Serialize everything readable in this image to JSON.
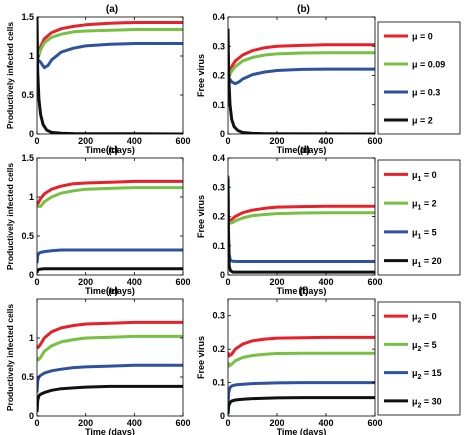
{
  "chart_data": [
    {
      "type": "line",
      "panel_label": "(a)",
      "xlabel": "Time (days)",
      "ylabel": "Productively infected cells",
      "xlim": [
        0,
        600
      ],
      "ylim": [
        0,
        1.5
      ],
      "xticks": [
        "0",
        "200",
        "400",
        "600"
      ],
      "yticks": [
        "0",
        "0.5",
        "1",
        "1.5"
      ],
      "series": [
        {
          "color": "#e8202a",
          "x": [
            0,
            5,
            15,
            30,
            60,
            100,
            150,
            200,
            300,
            400,
            500,
            600
          ],
          "y": [
            0.9,
            1.0,
            1.12,
            1.22,
            1.3,
            1.35,
            1.38,
            1.4,
            1.42,
            1.43,
            1.43,
            1.43
          ]
        },
        {
          "color": "#76c043",
          "x": [
            0,
            5,
            15,
            30,
            60,
            100,
            150,
            200,
            300,
            400,
            500,
            600
          ],
          "y": [
            0.9,
            0.98,
            1.08,
            1.17,
            1.24,
            1.28,
            1.31,
            1.32,
            1.33,
            1.34,
            1.34,
            1.34
          ]
        },
        {
          "color": "#2f52a0",
          "x": [
            0,
            5,
            15,
            30,
            45,
            60,
            100,
            150,
            200,
            300,
            400,
            500,
            600
          ],
          "y": [
            0.9,
            0.95,
            0.92,
            0.85,
            0.88,
            0.95,
            1.05,
            1.1,
            1.13,
            1.15,
            1.16,
            1.16,
            1.16
          ]
        },
        {
          "color": "#111111",
          "x": [
            0,
            3,
            8,
            15,
            25,
            40,
            60,
            100,
            150,
            600
          ],
          "y": [
            1.5,
            0.8,
            0.45,
            0.25,
            0.12,
            0.05,
            0.02,
            0.01,
            0.005,
            0
          ]
        }
      ]
    },
    {
      "type": "line",
      "panel_label": "(b)",
      "xlabel": "Time (days)",
      "ylabel": "Free virus",
      "xlim": [
        0,
        600
      ],
      "ylim": [
        0,
        0.4
      ],
      "xticks": [
        "0",
        "200",
        "400",
        "600"
      ],
      "yticks": [
        "0",
        "0.1",
        "0.2",
        "0.3",
        "0.4"
      ],
      "series": [
        {
          "name": "μ = 0",
          "color": "#e8202a",
          "x": [
            0,
            5,
            15,
            30,
            60,
            100,
            150,
            200,
            300,
            400,
            500,
            600
          ],
          "y": [
            0.2,
            0.21,
            0.23,
            0.25,
            0.27,
            0.285,
            0.295,
            0.3,
            0.303,
            0.305,
            0.305,
            0.305
          ]
        },
        {
          "name": "μ = 0.09",
          "color": "#76c043",
          "x": [
            0,
            5,
            15,
            30,
            60,
            100,
            150,
            200,
            300,
            400,
            500,
            600
          ],
          "y": [
            0.2,
            0.2,
            0.215,
            0.23,
            0.25,
            0.262,
            0.27,
            0.274,
            0.277,
            0.278,
            0.278,
            0.278
          ]
        },
        {
          "name": "μ = 0.3",
          "color": "#2f52a0",
          "x": [
            0,
            5,
            15,
            30,
            45,
            60,
            100,
            150,
            200,
            300,
            400,
            500,
            600
          ],
          "y": [
            0.2,
            0.19,
            0.178,
            0.172,
            0.178,
            0.188,
            0.203,
            0.212,
            0.217,
            0.221,
            0.222,
            0.222,
            0.222
          ]
        },
        {
          "name": "μ  = 2",
          "color": "#111111",
          "x": [
            0,
            3,
            8,
            15,
            25,
            40,
            60,
            100,
            150,
            600
          ],
          "y": [
            0.36,
            0.2,
            0.1,
            0.05,
            0.025,
            0.012,
            0.005,
            0.002,
            0.001,
            0
          ]
        }
      ],
      "legend": "right"
    },
    {
      "type": "line",
      "panel_label": "(c)",
      "xlabel": "Time (days)",
      "ylabel": "Productively infected cells",
      "xlim": [
        0,
        600
      ],
      "ylim": [
        0,
        1.5
      ],
      "xticks": [
        "0",
        "200",
        "400",
        "600"
      ],
      "yticks": [
        "0",
        "0.5",
        "1",
        "1.5"
      ],
      "series": [
        {
          "color": "#e8202a",
          "x": [
            0,
            5,
            15,
            30,
            60,
            100,
            150,
            200,
            300,
            400,
            500,
            600
          ],
          "y": [
            0.9,
            0.92,
            0.98,
            1.04,
            1.1,
            1.14,
            1.17,
            1.18,
            1.19,
            1.2,
            1.2,
            1.2
          ]
        },
        {
          "color": "#76c043",
          "x": [
            0,
            5,
            15,
            30,
            60,
            100,
            150,
            200,
            300,
            400,
            500,
            600
          ],
          "y": [
            0.9,
            0.88,
            0.88,
            0.94,
            1.0,
            1.05,
            1.08,
            1.1,
            1.11,
            1.12,
            1.12,
            1.12
          ]
        },
        {
          "color": "#2f52a0",
          "x": [
            0,
            3,
            8,
            15,
            30,
            60,
            100,
            200,
            400,
            600
          ],
          "y": [
            0.15,
            0.25,
            0.28,
            0.29,
            0.3,
            0.31,
            0.32,
            0.32,
            0.32,
            0.32
          ]
        },
        {
          "color": "#111111",
          "x": [
            0,
            3,
            8,
            15,
            30,
            60,
            100,
            200,
            400,
            600
          ],
          "y": [
            0.03,
            0.06,
            0.07,
            0.075,
            0.08,
            0.08,
            0.08,
            0.08,
            0.08,
            0.08
          ]
        }
      ]
    },
    {
      "type": "line",
      "panel_label": "(d)",
      "xlabel": "Time (days)",
      "ylabel": "Free virus",
      "xlim": [
        0,
        600
      ],
      "ylim": [
        0,
        0.4
      ],
      "xticks": [
        "0",
        "200",
        "400",
        "600"
      ],
      "yticks": [
        "0",
        "0.1",
        "0.2",
        "0.3",
        "0.4"
      ],
      "series": [
        {
          "name": "μ1 = 0",
          "color": "#e8202a",
          "x": [
            0,
            5,
            15,
            30,
            60,
            100,
            150,
            200,
            300,
            400,
            500,
            600
          ],
          "y": [
            0.19,
            0.185,
            0.19,
            0.2,
            0.213,
            0.222,
            0.228,
            0.232,
            0.234,
            0.235,
            0.235,
            0.235
          ]
        },
        {
          "name": "μ1 = 2",
          "color": "#76c043",
          "x": [
            0,
            5,
            15,
            30,
            60,
            100,
            150,
            200,
            300,
            400,
            500,
            600
          ],
          "y": [
            0.19,
            0.178,
            0.178,
            0.185,
            0.195,
            0.203,
            0.207,
            0.21,
            0.212,
            0.213,
            0.213,
            0.213
          ]
        },
        {
          "name": "μ1 = 5",
          "color": "#2f52a0",
          "x": [
            0,
            2,
            5,
            10,
            20,
            40,
            80,
            200,
            400,
            600
          ],
          "y": [
            0.34,
            0.15,
            0.07,
            0.05,
            0.047,
            0.046,
            0.046,
            0.046,
            0.046,
            0.046
          ]
        },
        {
          "name": "μ1 = 20",
          "color": "#111111",
          "x": [
            0,
            2,
            5,
            10,
            20,
            40,
            80,
            200,
            400,
            600
          ],
          "y": [
            0.33,
            0.1,
            0.03,
            0.015,
            0.01,
            0.01,
            0.01,
            0.01,
            0.01,
            0.01
          ]
        }
      ],
      "legend": "right"
    },
    {
      "type": "line",
      "panel_label": "(e)",
      "xlabel": "Time (days)",
      "ylabel": "Productively infected cells",
      "xlim": [
        0,
        600
      ],
      "ylim": [
        0,
        1.5
      ],
      "xticks": [
        "0",
        "200",
        "400",
        "600"
      ],
      "yticks": [
        "0",
        "0.5",
        "1"
      ],
      "series": [
        {
          "color": "#e8202a",
          "x": [
            0,
            5,
            15,
            30,
            60,
            100,
            150,
            200,
            300,
            400,
            500,
            600
          ],
          "y": [
            0.9,
            0.88,
            0.92,
            1.0,
            1.08,
            1.13,
            1.16,
            1.18,
            1.19,
            1.2,
            1.2,
            1.2
          ]
        },
        {
          "color": "#76c043",
          "x": [
            0,
            5,
            15,
            30,
            60,
            100,
            150,
            200,
            300,
            400,
            500,
            600
          ],
          "y": [
            0.75,
            0.72,
            0.75,
            0.83,
            0.9,
            0.95,
            0.98,
            1.0,
            1.01,
            1.02,
            1.02,
            1.02
          ]
        },
        {
          "color": "#2f52a0",
          "x": [
            0,
            3,
            8,
            15,
            30,
            60,
            100,
            150,
            200,
            300,
            400,
            500,
            600
          ],
          "y": [
            0.3,
            0.45,
            0.5,
            0.52,
            0.55,
            0.58,
            0.6,
            0.62,
            0.63,
            0.64,
            0.65,
            0.65,
            0.65
          ]
        },
        {
          "color": "#111111",
          "x": [
            0,
            3,
            8,
            15,
            30,
            60,
            100,
            150,
            200,
            300,
            400,
            500,
            600
          ],
          "y": [
            0.05,
            0.2,
            0.26,
            0.28,
            0.3,
            0.33,
            0.35,
            0.36,
            0.37,
            0.38,
            0.38,
            0.38,
            0.38
          ]
        }
      ]
    },
    {
      "type": "line",
      "panel_label": "(f)",
      "xlabel": "Time (days)",
      "ylabel": "Free virus",
      "xlim": [
        0,
        600
      ],
      "ylim": [
        0,
        0.35
      ],
      "xticks": [
        "0",
        "200",
        "400",
        "600"
      ],
      "yticks": [
        "0",
        "0.1",
        "0.2",
        "0.3"
      ],
      "series": [
        {
          "name": "μ2 = 0",
          "color": "#e8202a",
          "x": [
            0,
            5,
            15,
            30,
            60,
            100,
            150,
            200,
            300,
            400,
            500,
            600
          ],
          "y": [
            0.19,
            0.18,
            0.185,
            0.2,
            0.215,
            0.225,
            0.23,
            0.233,
            0.234,
            0.235,
            0.235,
            0.235
          ]
        },
        {
          "name": "μ2 = 5",
          "color": "#76c043",
          "x": [
            0,
            5,
            15,
            30,
            60,
            100,
            150,
            200,
            300,
            400,
            500,
            600
          ],
          "y": [
            0.16,
            0.15,
            0.155,
            0.165,
            0.175,
            0.181,
            0.185,
            0.187,
            0.188,
            0.188,
            0.188,
            0.188
          ]
        },
        {
          "name": "μ2 = 15",
          "color": "#2f52a0",
          "x": [
            0,
            3,
            8,
            15,
            30,
            60,
            100,
            150,
            200,
            300,
            400,
            500,
            600
          ],
          "y": [
            0.03,
            0.07,
            0.085,
            0.09,
            0.093,
            0.095,
            0.097,
            0.098,
            0.099,
            0.1,
            0.1,
            0.1,
            0.1
          ]
        },
        {
          "name": "μ2 = 30",
          "color": "#111111",
          "x": [
            0,
            3,
            8,
            15,
            30,
            60,
            100,
            150,
            200,
            300,
            400,
            500,
            600
          ],
          "y": [
            0.005,
            0.03,
            0.04,
            0.045,
            0.048,
            0.05,
            0.052,
            0.053,
            0.054,
            0.055,
            0.055,
            0.055,
            0.055
          ]
        }
      ],
      "legend": "right"
    }
  ]
}
